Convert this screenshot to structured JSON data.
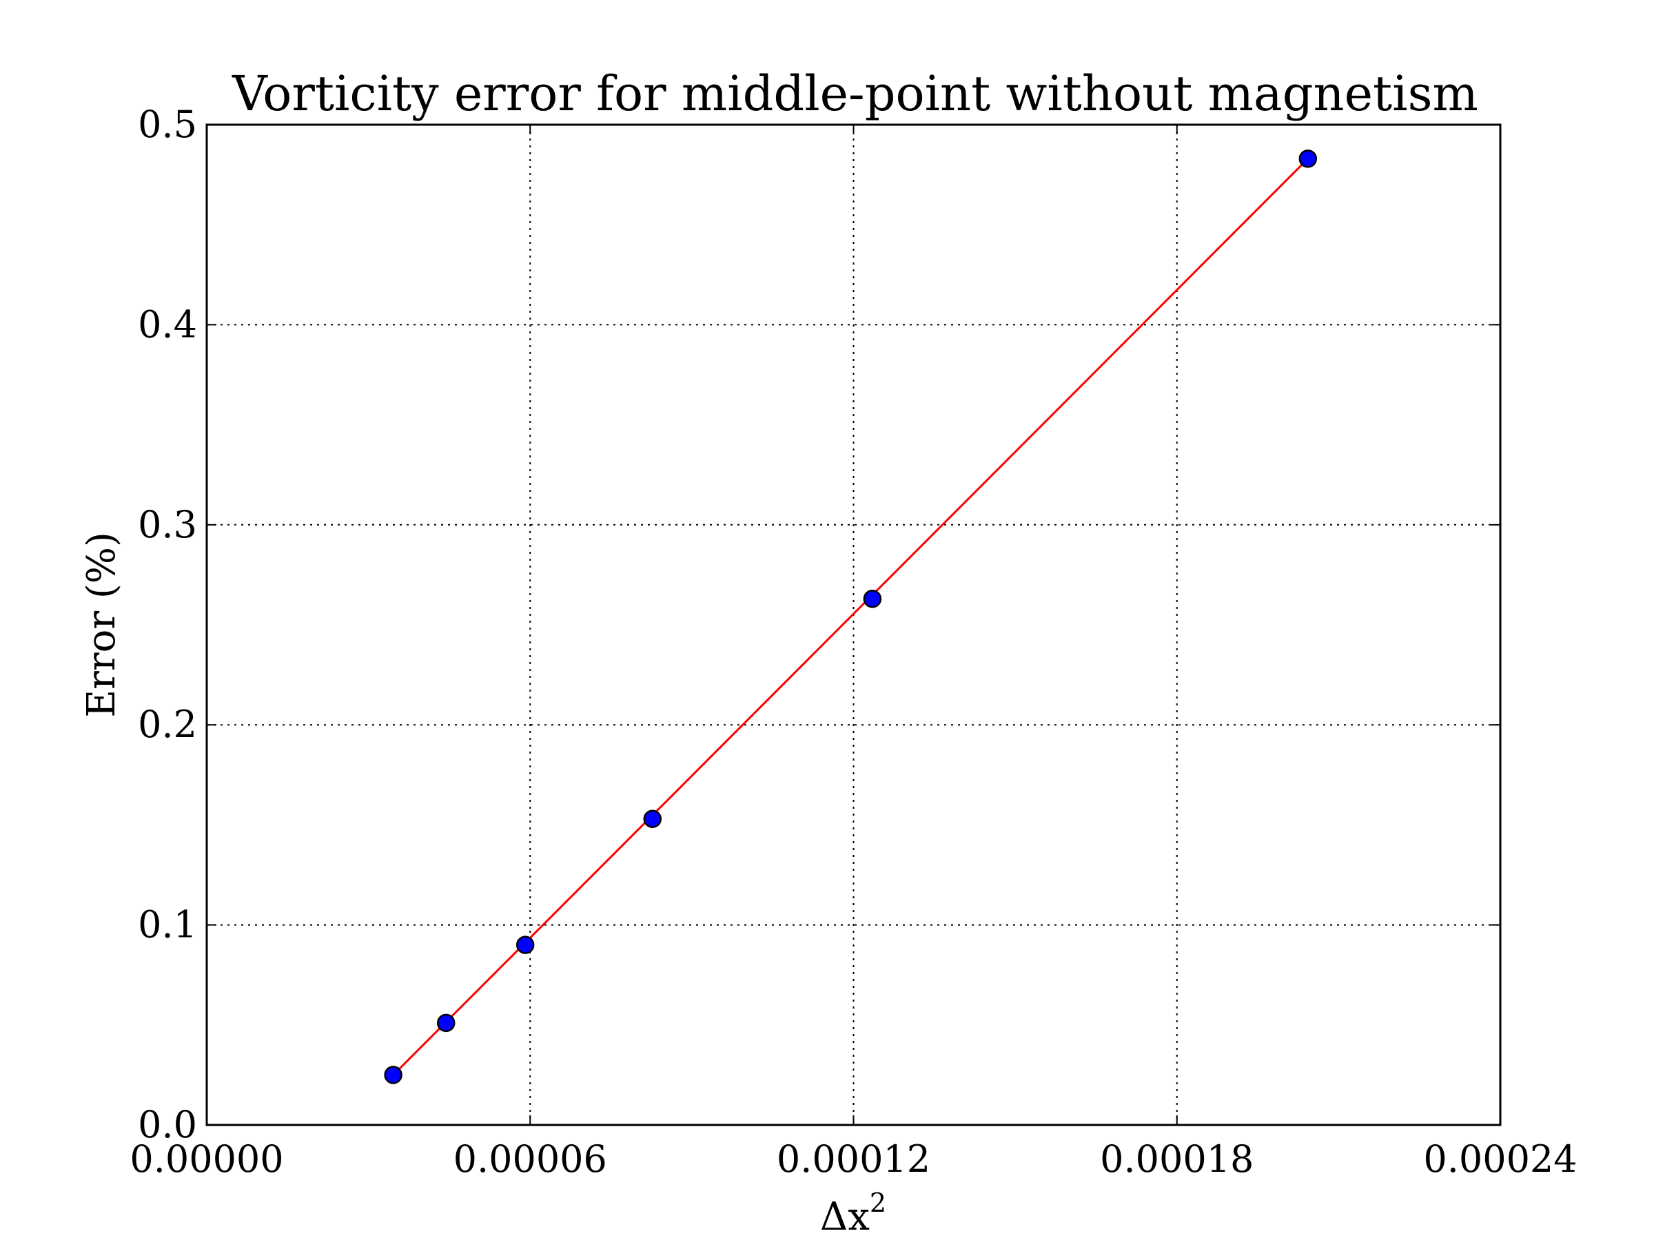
{
  "chart_data": {
    "type": "scatter",
    "title": "Vorticity error for middle-point without magnetism",
    "xlabel": "Δx²",
    "xlabel_base": "Δx",
    "xlabel_sup": "2",
    "ylabel": "Error (%)",
    "xlim": [
      0,
      0.00024
    ],
    "ylim": [
      0,
      0.5
    ],
    "xticks": [
      0,
      6e-05,
      0.00012,
      0.00018,
      0.00024
    ],
    "xtick_labels": [
      "0.00000",
      "0.00006",
      "0.00012",
      "0.00018",
      "0.00024"
    ],
    "yticks": [
      0,
      0.1,
      0.2,
      0.3,
      0.4,
      0.5
    ],
    "ytick_labels": [
      "0.0",
      "0.1",
      "0.2",
      "0.3",
      "0.4",
      "0.5"
    ],
    "grid": true,
    "series": [
      {
        "kind": "points",
        "marker_color": "#0000ff",
        "x": [
          3.46e-05,
          4.44e-05,
          5.91e-05,
          8.27e-05,
          0.0001235,
          0.0002043
        ],
        "y": [
          0.025,
          0.051,
          0.09,
          0.153,
          0.263,
          0.483
        ]
      },
      {
        "kind": "fit-line",
        "line_color": "#ff0000",
        "x": [
          3.46e-05,
          0.0002043
        ],
        "y": [
          0.025,
          0.483
        ]
      }
    ]
  }
}
